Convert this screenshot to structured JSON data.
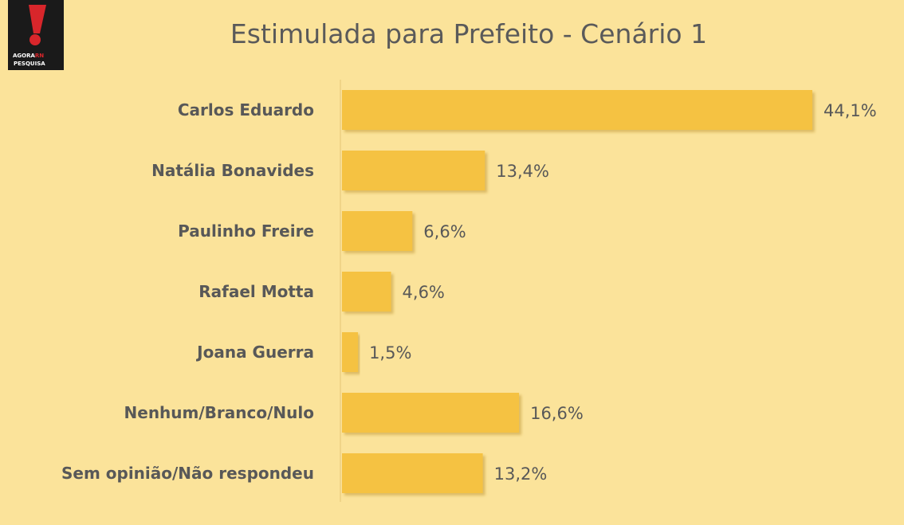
{
  "logo": {
    "line1_a": "AGORA",
    "line1_b": "RN",
    "line2": "PESQUISA"
  },
  "colors": {
    "background": "#fbe39a",
    "bar": "#f5c242",
    "bar_shadow": "#d3a83a",
    "text": "#585858",
    "axis": "#f0d488"
  },
  "chart_data": {
    "type": "bar",
    "orientation": "horizontal",
    "title": "Estimulada para Prefeito - Cenário 1",
    "categories": [
      "Carlos Eduardo",
      "Natália Bonavides",
      "Paulinho Freire",
      "Rafael Motta",
      "Joana Guerra",
      "Nenhum/Branco/Nulo",
      "Sem opinião/Não respondeu"
    ],
    "values": [
      44.1,
      13.4,
      6.6,
      4.6,
      1.5,
      16.6,
      13.2
    ],
    "labels": [
      "44,1%",
      "13,4%",
      "6,6%",
      "4,6%",
      "1,5%",
      "16,6%",
      "13,2%"
    ],
    "xlim": [
      0,
      44.1
    ],
    "grid": false,
    "legend": "none"
  }
}
